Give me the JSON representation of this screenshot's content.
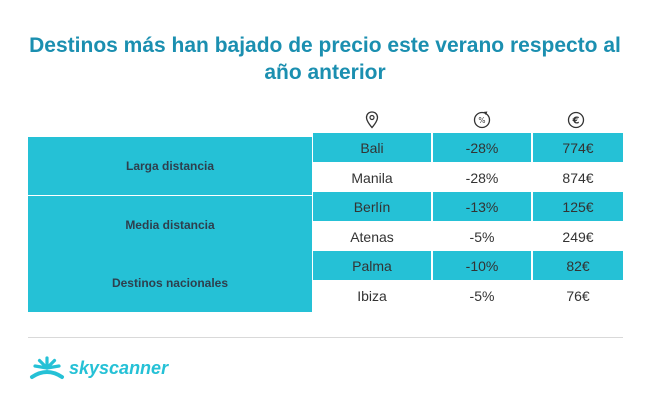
{
  "title_line1": "Destinos más han bajado de precio este verano respecto al",
  "title_line2": "año anterior",
  "header_icons": [
    "location-pin-icon",
    "percent-down-icon",
    "euro-icon"
  ],
  "groups": [
    "Larga distancia",
    "Media distancia",
    "Destinos nacionales"
  ],
  "rows": [
    {
      "destination": "Bali",
      "change": "-28%",
      "price": "774€"
    },
    {
      "destination": "Manila",
      "change": "-28%",
      "price": "874€"
    },
    {
      "destination": "Berlín",
      "change": "-13%",
      "price": "125€"
    },
    {
      "destination": "Atenas",
      "change": "-5%",
      "price": "249€"
    },
    {
      "destination": "Palma",
      "change": "-10%",
      "price": "82€"
    },
    {
      "destination": "Ibiza",
      "change": "-5%",
      "price": "76€"
    }
  ],
  "brand": "skyscanner",
  "colors": {
    "accent": "#25c1d6",
    "title": "#1b8fb0",
    "text": "#2e3f4d"
  }
}
